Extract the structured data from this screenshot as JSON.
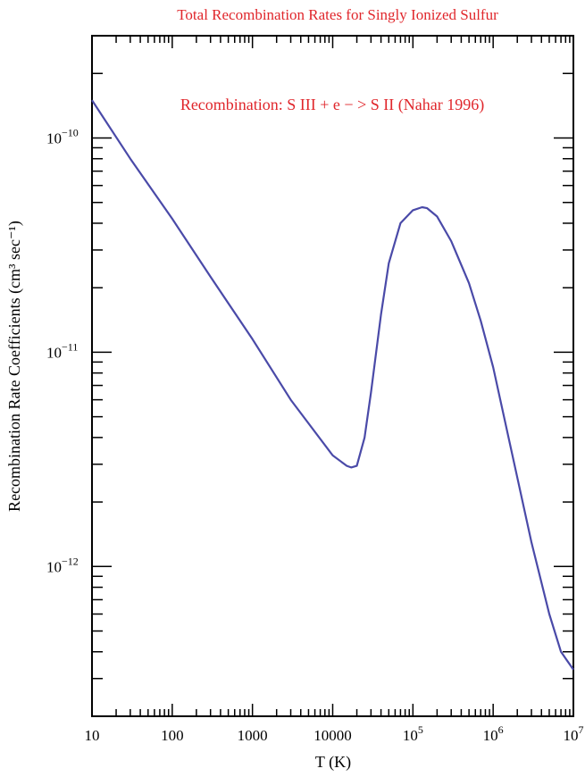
{
  "chart_data": {
    "type": "line",
    "title": "Total Recombination Rates for Singly Ionized Sulfur",
    "annotation": "Recombination: S III + e − > S II (Nahar 1996)",
    "xlabel": "T (K)",
    "ylabel": "Recombination Rate Coefficients (cm³ sec⁻¹)",
    "xscale": "log",
    "yscale": "log",
    "xlim": [
      10,
      10000000
    ],
    "ylim": [
      2e-13,
      3e-10
    ],
    "x_ticks": [
      {
        "value": 10,
        "label": "10"
      },
      {
        "value": 100,
        "label": "100"
      },
      {
        "value": 1000,
        "label": "1000"
      },
      {
        "value": 10000,
        "label": "10000"
      },
      {
        "value": 100000,
        "base": "10",
        "exp": "5"
      },
      {
        "value": 1000000,
        "base": "10",
        "exp": "6"
      },
      {
        "value": 10000000,
        "base": "10",
        "exp": "7"
      }
    ],
    "y_ticks": [
      {
        "value": 1e-10,
        "base": "10",
        "exp": "−10"
      },
      {
        "value": 1e-11,
        "base": "10",
        "exp": "−11"
      },
      {
        "value": 1e-12,
        "base": "10",
        "exp": "−12"
      }
    ],
    "grid": false,
    "line_color": "#4a4aa8",
    "series": [
      {
        "x": [
          10,
          30,
          100,
          300,
          1000,
          3000,
          10000,
          15000,
          17000,
          20000,
          25000,
          30000,
          40000,
          50000,
          70000,
          100000,
          130000,
          150000,
          200000,
          300000,
          500000,
          700000,
          1000000,
          2000000,
          3000000,
          5000000,
          7000000,
          10000000
        ],
        "y": [
          1.5e-10,
          8e-11,
          4.2e-11,
          2.25e-11,
          1.15e-11,
          6e-12,
          3.3e-12,
          2.95e-12,
          2.9e-12,
          2.95e-12,
          4e-12,
          6.5e-12,
          1.5e-11,
          2.6e-11,
          4e-11,
          4.6e-11,
          4.75e-11,
          4.7e-11,
          4.3e-11,
          3.3e-11,
          2.1e-11,
          1.4e-11,
          8.5e-12,
          2.6e-12,
          1.3e-12,
          6e-13,
          4e-13,
          3.3e-13
        ]
      }
    ]
  }
}
